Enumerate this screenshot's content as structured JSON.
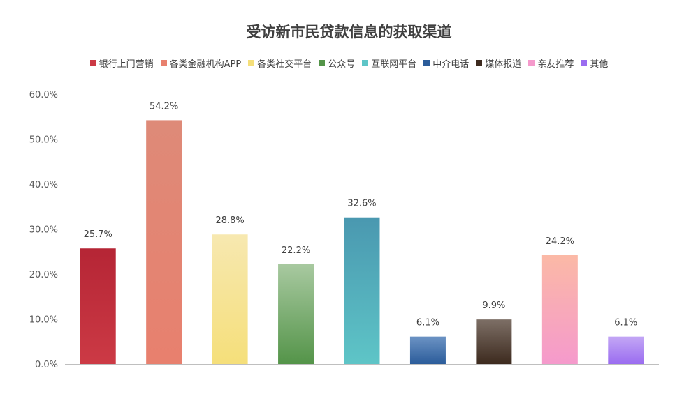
{
  "chart_data": {
    "type": "bar",
    "title": "受访新市民贷款信息的获取渠道",
    "categories": [
      "银行上门营销",
      "各类金融机构APP",
      "各类社交平台",
      "公众号",
      "互联网平台",
      "中介电话",
      "媒体报道",
      "亲友推荐",
      "其他"
    ],
    "series": [
      {
        "name": "银行上门营销",
        "value": 25.7,
        "label": "25.7%",
        "colors": [
          "#cc3a45",
          "#b52535"
        ]
      },
      {
        "name": "各类金融机构APP",
        "value": 54.2,
        "label": "54.2%",
        "colors": [
          "#e8806e",
          "#de8a78"
        ]
      },
      {
        "name": "各类社交平台",
        "value": 28.8,
        "label": "28.8%",
        "colors": [
          "#f5df7a",
          "#f7e8b0"
        ]
      },
      {
        "name": "公众号",
        "value": 22.2,
        "label": "22.2%",
        "colors": [
          "#549449",
          "#a8c9a0"
        ]
      },
      {
        "name": "互联网平台",
        "value": 32.6,
        "label": "32.6%",
        "colors": [
          "#5ec5c7",
          "#4a98b0"
        ]
      },
      {
        "name": "中介电话",
        "value": 6.1,
        "label": "6.1%",
        "colors": [
          "#2b5c9a",
          "#6c93c4"
        ]
      },
      {
        "name": "媒体报道",
        "value": 9.9,
        "label": "9.9%",
        "colors": [
          "#3d2a1e",
          "#7d6f66"
        ]
      },
      {
        "name": "亲友推荐",
        "value": 24.2,
        "label": "24.2%",
        "colors": [
          "#f59acc",
          "#fbb9a6"
        ]
      },
      {
        "name": "其他",
        "value": 6.1,
        "label": "6.1%",
        "colors": [
          "#9a6cf0",
          "#c3a7f5"
        ]
      }
    ],
    "y_ticks": [
      "0.0%",
      "10.0%",
      "20.0%",
      "30.0%",
      "40.0%",
      "50.0%",
      "60.0%"
    ],
    "ylim": [
      0,
      60
    ],
    "legend_position": "top",
    "grid": false
  }
}
